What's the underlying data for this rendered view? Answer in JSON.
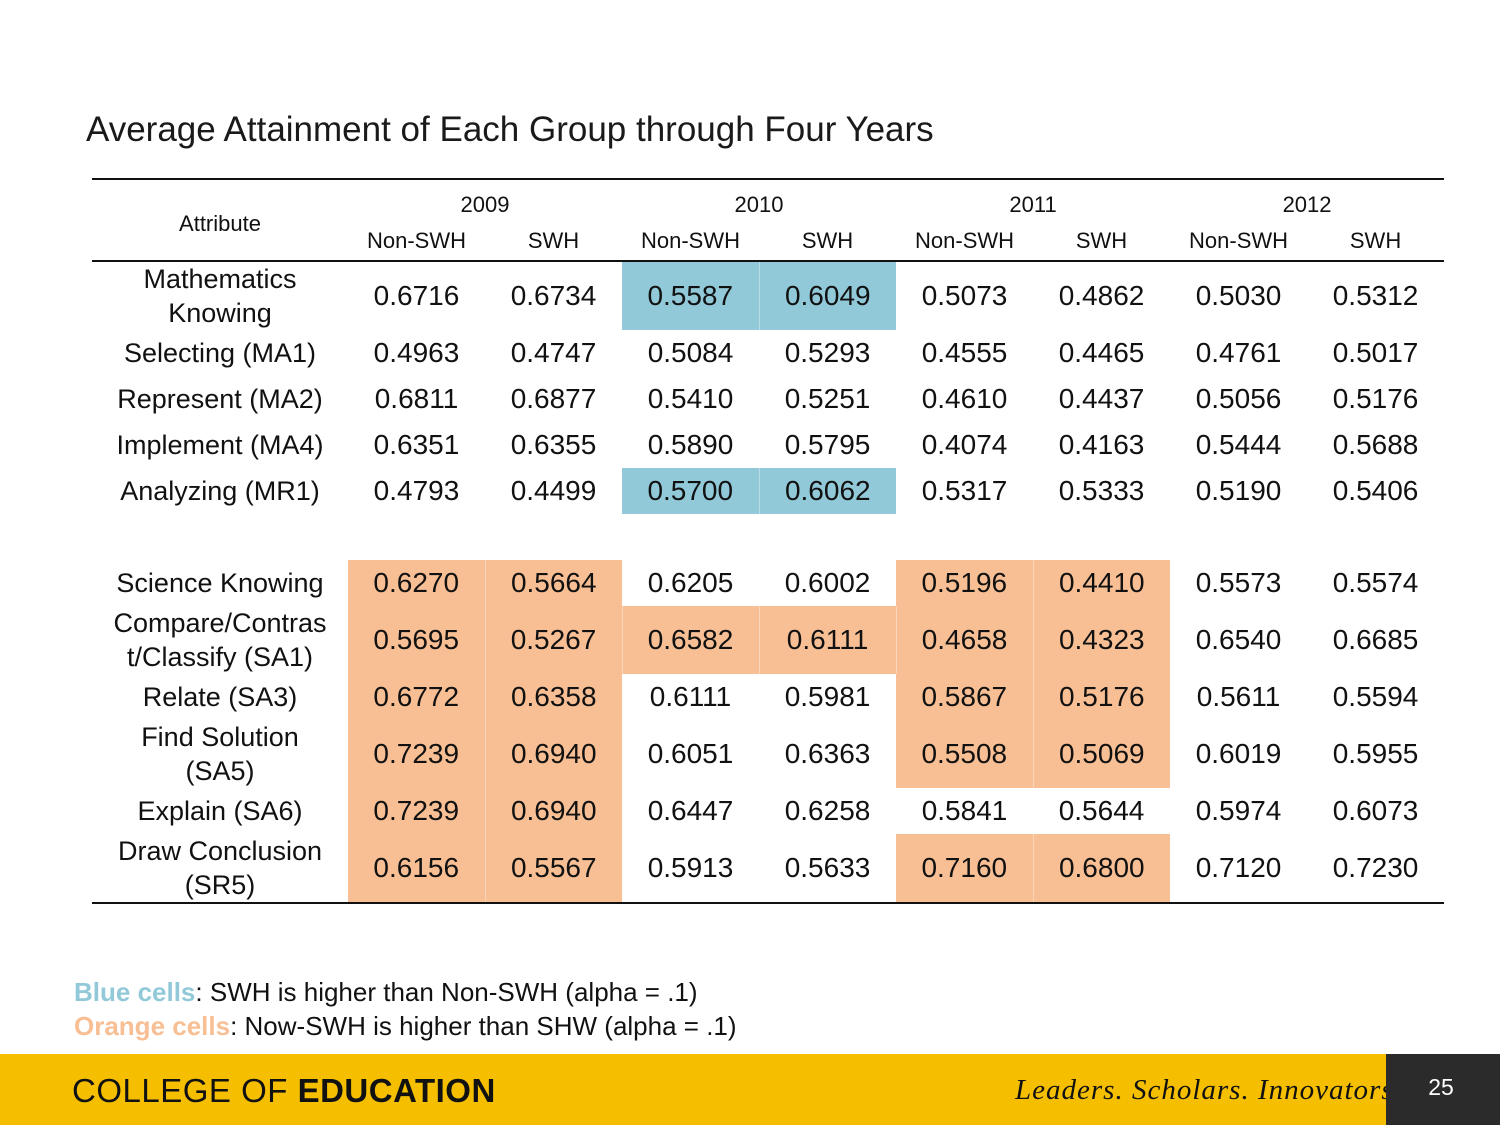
{
  "title": "Average Attainment of Each Group through Four Years",
  "table": {
    "attribute_header": "Attribute",
    "years": [
      "2009",
      "2010",
      "2011",
      "2012"
    ],
    "groups": [
      "Non-SWH",
      "SWH",
      "Non-SWH",
      "SWH",
      "Non-SWH",
      "SWH",
      "Non-SWH",
      "SWH"
    ],
    "highlight_colors": {
      "blue": "#92c9d9",
      "orange": "#f8bf94"
    },
    "math_rows": [
      {
        "label_lines": [
          "Mathematics",
          "Knowing"
        ],
        "values": [
          "0.6716",
          "0.6734",
          "0.5587",
          "0.6049",
          "0.5073",
          "0.4862",
          "0.5030",
          "0.5312"
        ],
        "highlight": [
          "",
          "",
          "blue",
          "blue",
          "",
          "",
          "",
          ""
        ]
      },
      {
        "label_lines": [
          "Selecting (MA1)"
        ],
        "values": [
          "0.4963",
          "0.4747",
          "0.5084",
          "0.5293",
          "0.4555",
          "0.4465",
          "0.4761",
          "0.5017"
        ],
        "highlight": [
          "",
          "",
          "",
          "",
          "",
          "",
          "",
          ""
        ]
      },
      {
        "label_lines": [
          "Represent (MA2)"
        ],
        "values": [
          "0.6811",
          "0.6877",
          "0.5410",
          "0.5251",
          "0.4610",
          "0.4437",
          "0.5056",
          "0.5176"
        ],
        "highlight": [
          "",
          "",
          "",
          "",
          "",
          "",
          "",
          ""
        ]
      },
      {
        "label_lines": [
          "Implement (MA4)"
        ],
        "values": [
          "0.6351",
          "0.6355",
          "0.5890",
          "0.5795",
          "0.4074",
          "0.4163",
          "0.5444",
          "0.5688"
        ],
        "highlight": [
          "",
          "",
          "",
          "",
          "",
          "",
          "",
          ""
        ]
      },
      {
        "label_lines": [
          "Analyzing (MR1)"
        ],
        "values": [
          "0.4793",
          "0.4499",
          "0.5700",
          "0.6062",
          "0.5317",
          "0.5333",
          "0.5190",
          "0.5406"
        ],
        "highlight": [
          "",
          "",
          "blue",
          "blue",
          "",
          "",
          "",
          ""
        ]
      }
    ],
    "science_rows": [
      {
        "label_lines": [
          "Science Knowing"
        ],
        "values": [
          "0.6270",
          "0.5664",
          "0.6205",
          "0.6002",
          "0.5196",
          "0.4410",
          "0.5573",
          "0.5574"
        ],
        "highlight": [
          "orange",
          "orange",
          "",
          "",
          "orange",
          "orange",
          "",
          ""
        ]
      },
      {
        "label_lines": [
          "Compare/Contras",
          "t/Classify (SA1)"
        ],
        "values": [
          "0.5695",
          "0.5267",
          "0.6582",
          "0.6111",
          "0.4658",
          "0.4323",
          "0.6540",
          "0.6685"
        ],
        "highlight": [
          "orange",
          "orange",
          "orange",
          "orange",
          "orange",
          "orange",
          "",
          ""
        ]
      },
      {
        "label_lines": [
          "Relate (SA3)"
        ],
        "values": [
          "0.6772",
          "0.6358",
          "0.6111",
          "0.5981",
          "0.5867",
          "0.5176",
          "0.5611",
          "0.5594"
        ],
        "highlight": [
          "orange",
          "orange",
          "",
          "",
          "orange",
          "orange",
          "",
          ""
        ]
      },
      {
        "label_lines": [
          "Find Solution",
          "(SA5)"
        ],
        "values": [
          "0.7239",
          "0.6940",
          "0.6051",
          "0.6363",
          "0.5508",
          "0.5069",
          "0.6019",
          "0.5955"
        ],
        "highlight": [
          "orange",
          "orange",
          "",
          "",
          "orange",
          "orange",
          "",
          ""
        ]
      },
      {
        "label_lines": [
          "Explain (SA6)"
        ],
        "values": [
          "0.7239",
          "0.6940",
          "0.6447",
          "0.6258",
          "0.5841",
          "0.5644",
          "0.5974",
          "0.6073"
        ],
        "highlight": [
          "orange",
          "orange",
          "",
          "",
          "",
          "",
          "",
          ""
        ]
      },
      {
        "label_lines": [
          "Draw Conclusion",
          "(SR5)"
        ],
        "values": [
          "0.6156",
          "0.5567",
          "0.5913",
          "0.5633",
          "0.7160",
          "0.6800",
          "0.7120",
          "0.7230"
        ],
        "highlight": [
          "orange",
          "orange",
          "",
          "",
          "orange",
          "orange",
          "",
          ""
        ]
      }
    ]
  },
  "legend": {
    "blue_label": "Blue cells",
    "blue_text": ": SWH is higher than Non-SWH (alpha = .1)",
    "orange_label": "Orange cells",
    "orange_text": ": Now-SWH is higher than SHW (alpha = .1)"
  },
  "footer": {
    "college_prefix": "COLLEGE OF ",
    "college_bold": "EDUCATION",
    "tagline": "Leaders. Scholars. Innovators.",
    "page_number": "25",
    "colors": {
      "bar": "#f5bf00",
      "page_box": "#2b2b2b"
    }
  }
}
